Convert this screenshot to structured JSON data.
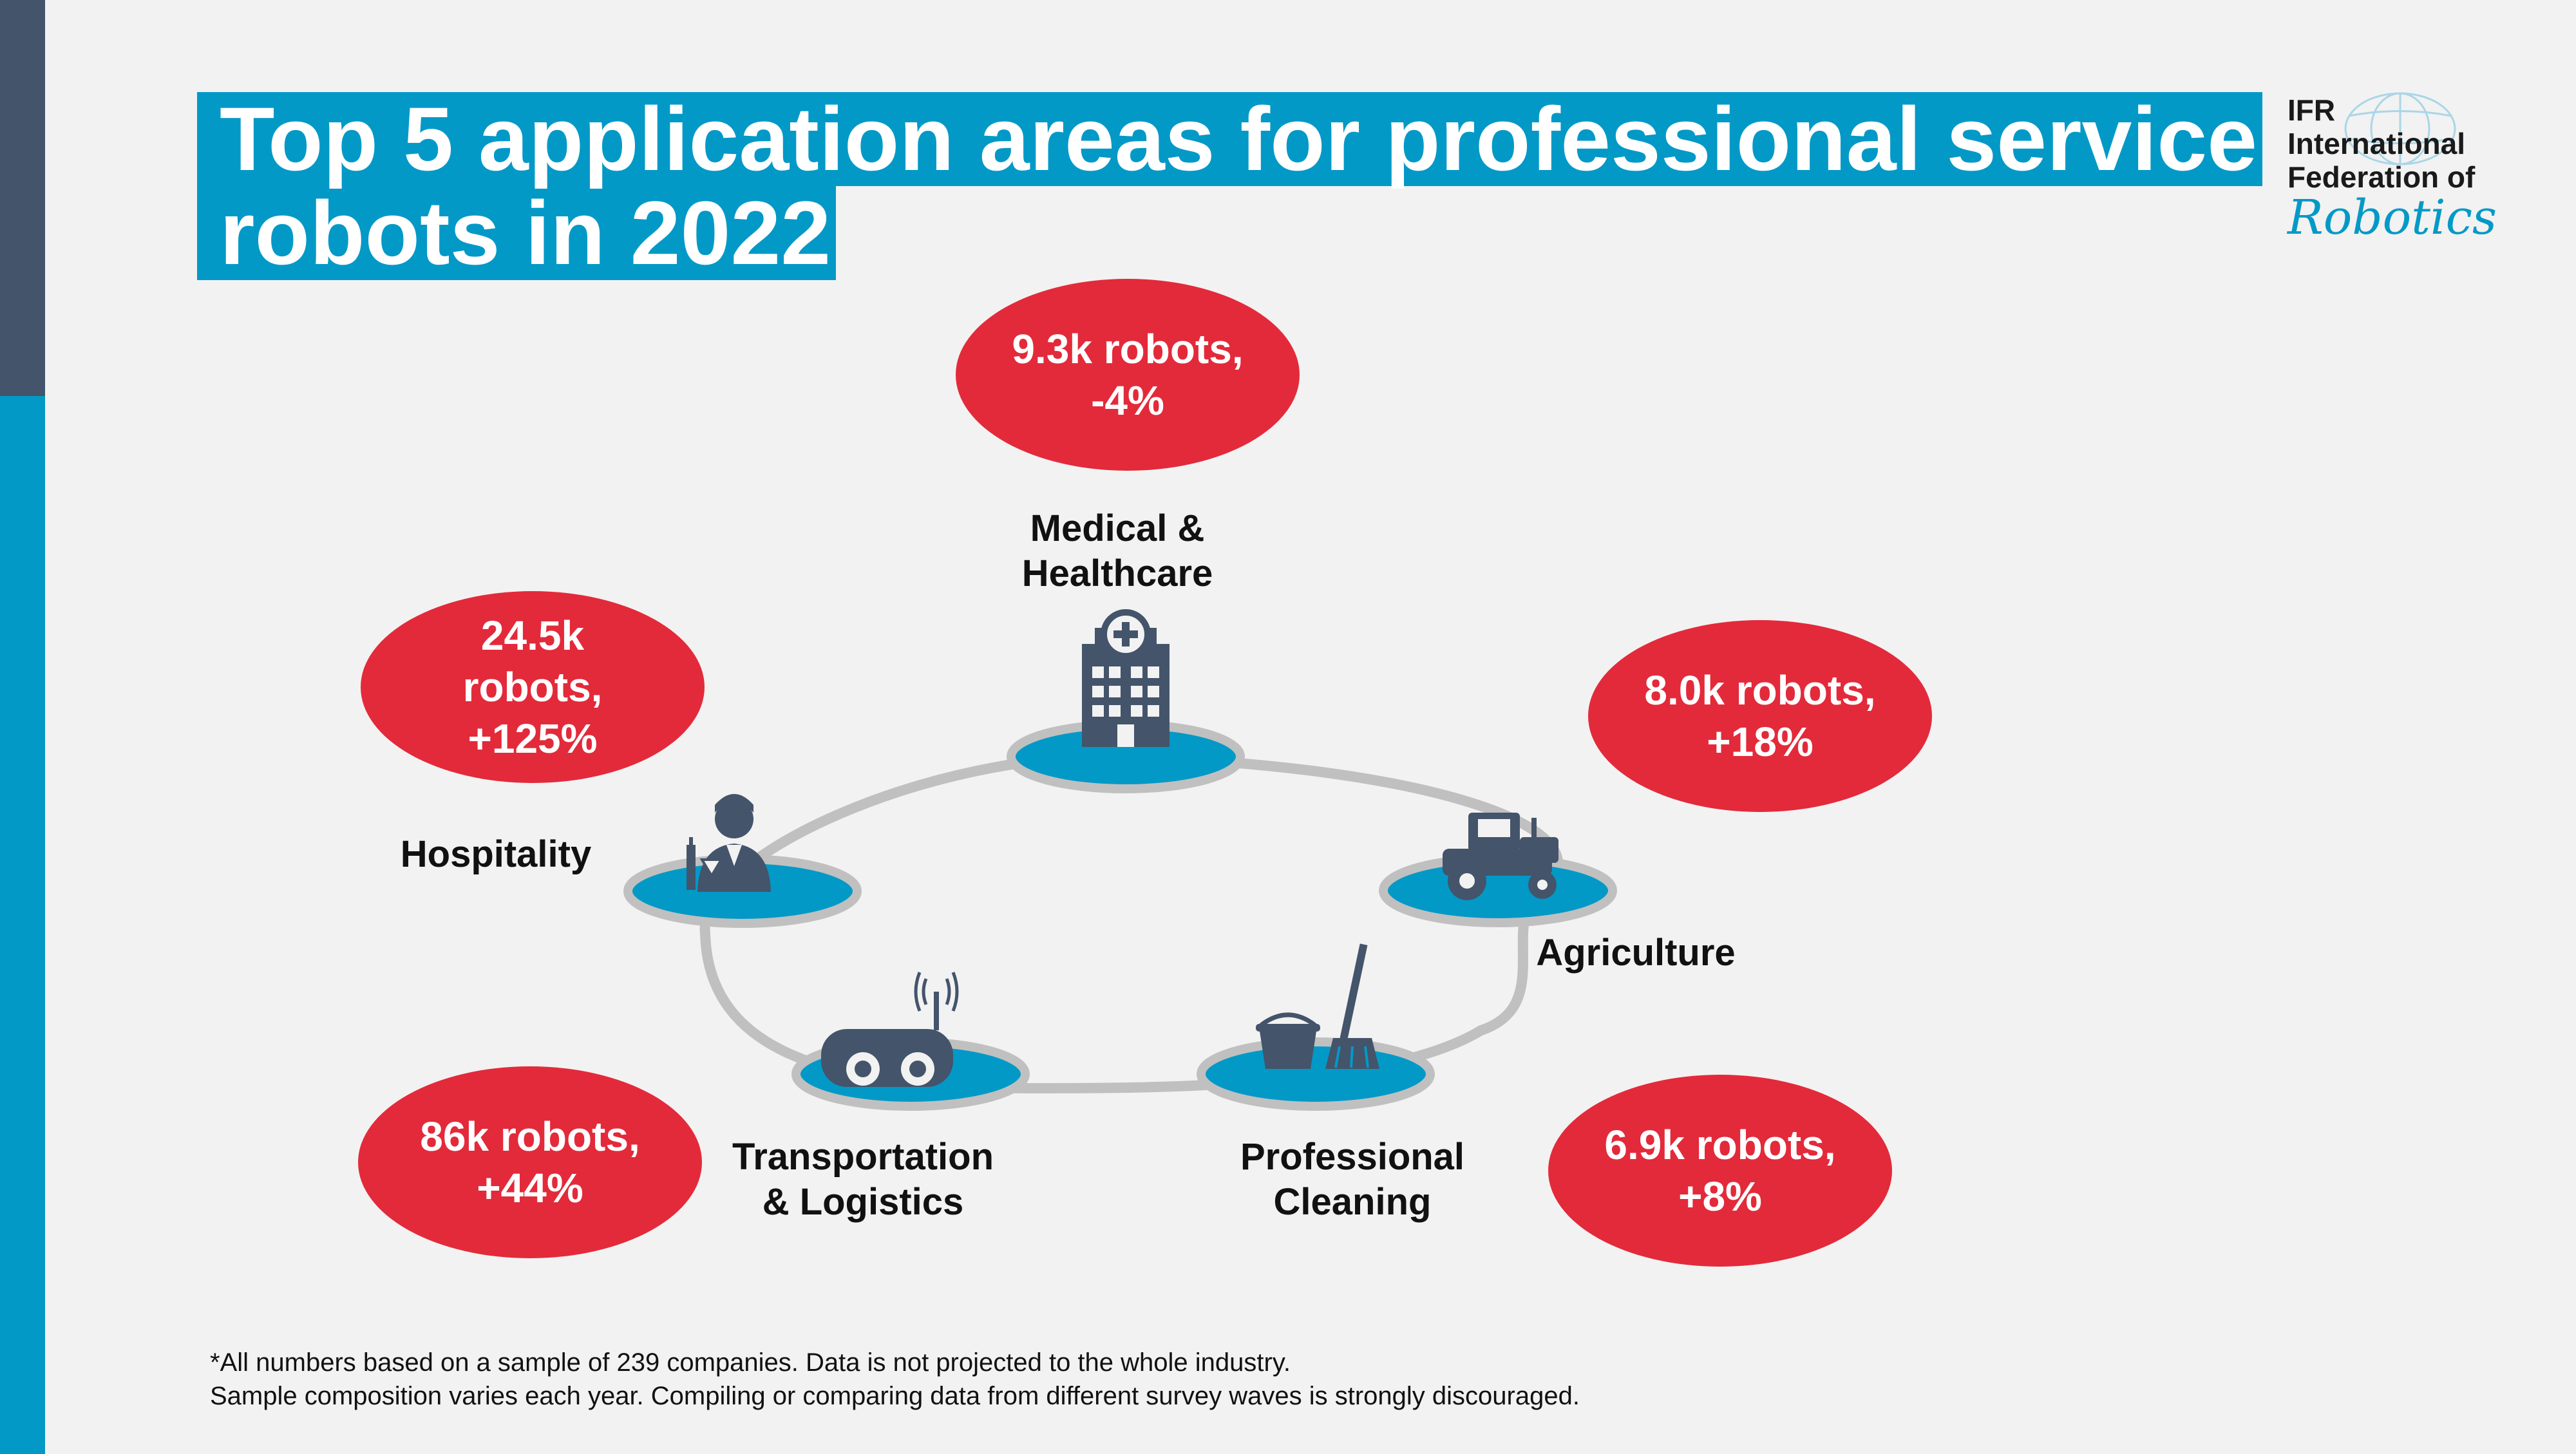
{
  "title": {
    "line1": "Top 5 application areas for professional service",
    "line2": "robots in 2022"
  },
  "logo": {
    "line1": "IFR",
    "line2": "International",
    "line3": "Federation of",
    "script": "Robotics"
  },
  "areas": [
    {
      "label": "Medical &\nHealthcare",
      "bubble": "9.3k robots,\n-4%",
      "icon": "hospital-icon"
    },
    {
      "label": "Agriculture",
      "bubble": "8.0k robots,\n+18%",
      "icon": "tractor-icon"
    },
    {
      "label": "Professional\nCleaning",
      "bubble": "6.9k robots,\n+8%",
      "icon": "bucket-mop-icon"
    },
    {
      "label": "Transportation\n& Logistics",
      "bubble": "86k robots,\n+44%",
      "icon": "delivery-robot-icon"
    },
    {
      "label": "Hospitality",
      "bubble": "24.5k\nrobots,\n+125%",
      "icon": "waiter-icon"
    }
  ],
  "footnote": {
    "line1": "*All numbers based on a sample of 239 companies. Data is not projected to the whole industry.",
    "line2": "Sample composition varies each year. Compiling or comparing data from different survey waves is strongly discouraged."
  },
  "colors": {
    "accent_blue": "#0399c7",
    "dark_slate": "#44546a",
    "bubble_red": "#e32a3a",
    "ring_gray": "#c0c0c0"
  }
}
